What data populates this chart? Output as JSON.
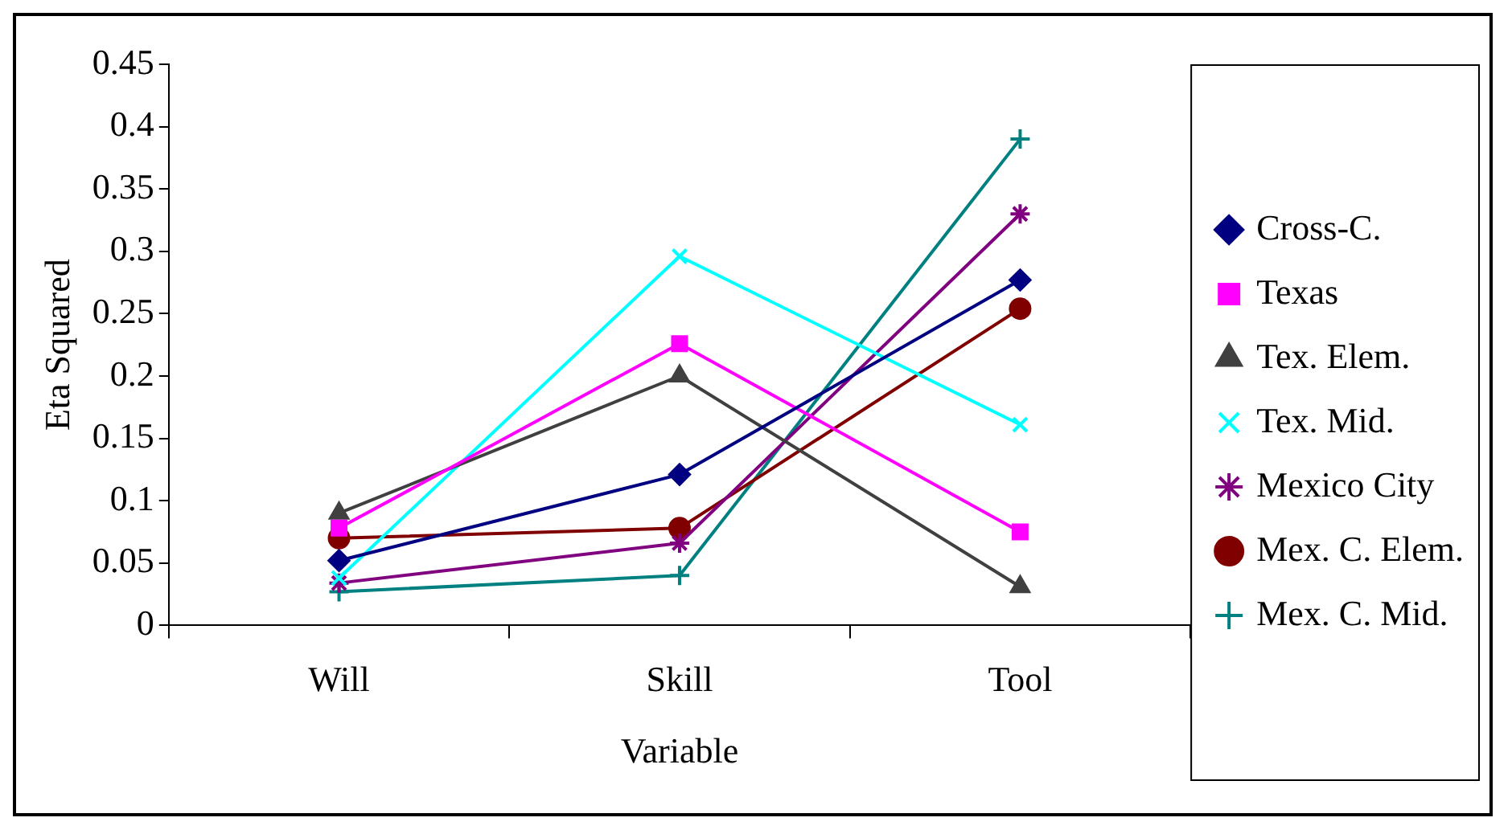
{
  "chart_data": {
    "type": "line",
    "xlabel": "Variable",
    "ylabel": "Eta Squared",
    "categories": [
      "Will",
      "Skill",
      "Tool"
    ],
    "series": [
      {
        "name": "Cross-C.",
        "color": "#000080",
        "marker": "diamond",
        "values": [
          0.052,
          0.121,
          0.277
        ]
      },
      {
        "name": "Texas",
        "color": "#ff00ff",
        "marker": "square",
        "values": [
          0.078,
          0.226,
          0.075
        ]
      },
      {
        "name": "Tex. Elem.",
        "color": "#404040",
        "marker": "triangle",
        "values": [
          0.09,
          0.2,
          0.031
        ]
      },
      {
        "name": "Tex. Mid.",
        "color": "#00ffff",
        "marker": "cross",
        "values": [
          0.038,
          0.296,
          0.161
        ]
      },
      {
        "name": "Mexico City",
        "color": "#800080",
        "marker": "cross",
        "values": [
          0.034,
          0.066,
          0.33
        ]
      },
      {
        "name": "Mex. C. Elem.",
        "color": "#800000",
        "marker": "circle",
        "values": [
          0.07,
          0.078,
          0.254
        ]
      },
      {
        "name": "Mex. C. Mid.",
        "color": "#008080",
        "marker": "cross",
        "values": [
          0.027,
          0.04,
          0.39
        ]
      }
    ],
    "ylim": [
      0,
      0.45
    ],
    "yticks": [
      0,
      0.05,
      0.1,
      0.15,
      0.2,
      0.25,
      0.3,
      0.35,
      0.4,
      0.45
    ],
    "grid": false,
    "legend": "right",
    "line_style": "solid"
  }
}
